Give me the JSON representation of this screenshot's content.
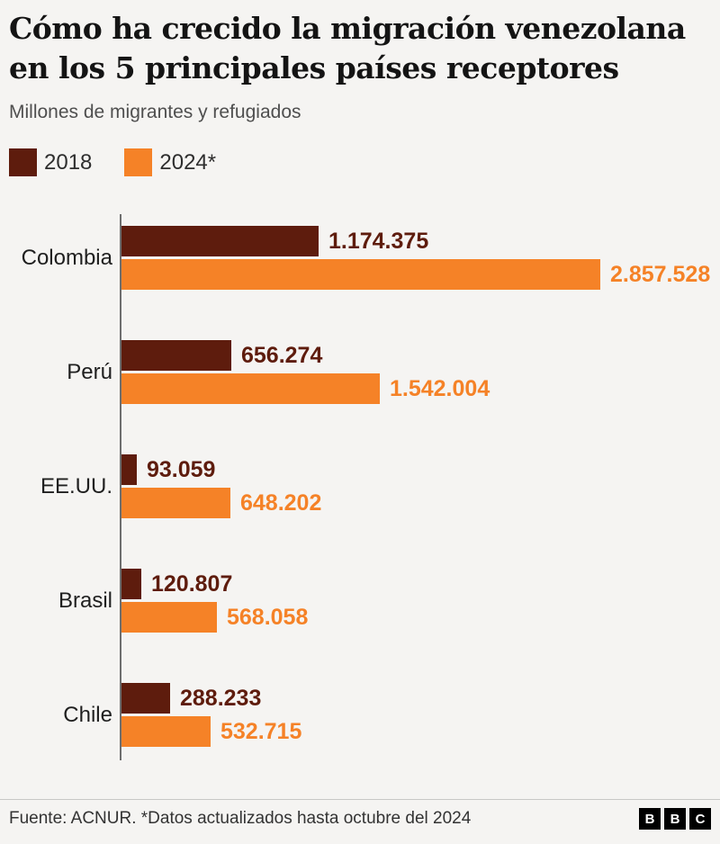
{
  "title": {
    "line1": "Cómo ha crecido la migración venezolana",
    "line2": "en los 5 principales países receptores"
  },
  "subtitle": "Millones de migrantes y refugiados",
  "legend": [
    {
      "label": "2018",
      "color": "#5e1c0d"
    },
    {
      "label": "2024*",
      "color": "#f58227"
    }
  ],
  "chart_data": {
    "type": "bar",
    "orientation": "horizontal",
    "title": "Cómo ha crecido la migración venezolana en los 5 principales países receptores",
    "subtitle": "Millones de migrantes y refugiados",
    "categories": [
      "Colombia",
      "Perú",
      "EE.UU.",
      "Brasil",
      "Chile"
    ],
    "series": [
      {
        "name": "2018",
        "color": "#5e1c0d",
        "values": [
          1174375,
          656274,
          93059,
          120807,
          288233
        ],
        "labels": [
          "1.174.375",
          "656.274",
          "93.059",
          "120.807",
          "288.233"
        ]
      },
      {
        "name": "2024*",
        "color": "#f58227",
        "values": [
          2857528,
          1542004,
          648202,
          568058,
          532715
        ],
        "labels": [
          "2.857.528",
          "1.542.004",
          "648.202",
          "568.058",
          "532.715"
        ]
      }
    ],
    "xmax": 2857528,
    "xlabel": "",
    "ylabel": "",
    "grid": false,
    "legend_position": "top-left"
  },
  "footer": {
    "source": "Fuente: ACNUR. *Datos actualizados hasta octubre del 2024",
    "logo_letters": [
      "B",
      "B",
      "C"
    ]
  },
  "colors": {
    "background": "#f5f4f2",
    "bar_2018": "#5e1c0d",
    "bar_2024": "#f58227",
    "axis": "#6e6e6e",
    "title_text": "#141414",
    "subtitle_text": "#4f4f4f",
    "footer_text": "#333333",
    "divider": "#c8c8c6"
  }
}
